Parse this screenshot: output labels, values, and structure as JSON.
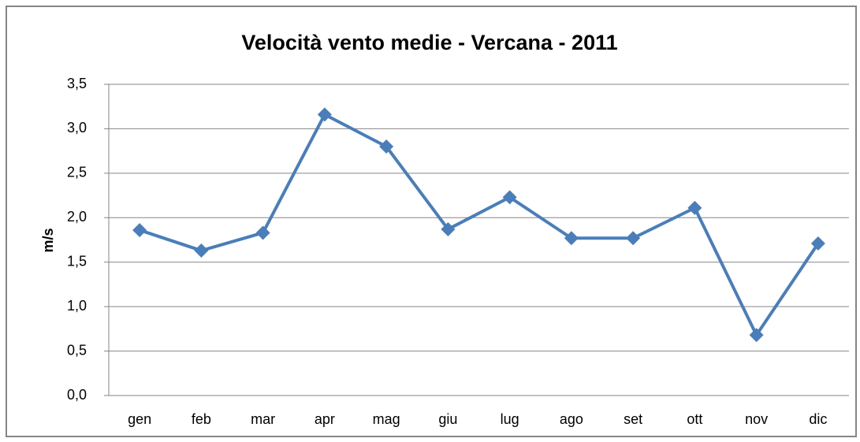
{
  "chart_data": {
    "type": "line",
    "title": "Velocità vento medie - Vercana - 2011",
    "y_label": "m/s",
    "categories": [
      "gen",
      "feb",
      "mar",
      "apr",
      "mag",
      "giu",
      "lug",
      "ago",
      "set",
      "ott",
      "nov",
      "dic"
    ],
    "values": [
      1.86,
      1.63,
      1.83,
      3.16,
      2.8,
      1.87,
      2.23,
      1.77,
      1.77,
      2.11,
      0.68,
      1.71
    ],
    "color": "#4a7ebb",
    "ylim": [
      0,
      3.5
    ],
    "yticks": [
      {
        "value": 0,
        "label": "0,0"
      },
      {
        "value": 0.5,
        "label": "0,5"
      },
      {
        "value": 1,
        "label": "1,0"
      },
      {
        "value": 1.5,
        "label": "1,5"
      },
      {
        "value": 2,
        "label": "2,0"
      },
      {
        "value": 2.5,
        "label": "2,5"
      },
      {
        "value": 3,
        "label": "3,0"
      },
      {
        "value": 3.5,
        "label": "3,5"
      }
    ],
    "grid": true
  }
}
